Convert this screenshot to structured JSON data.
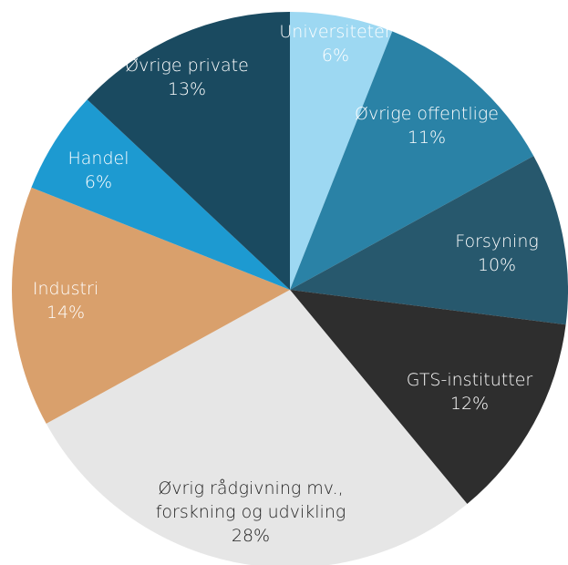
{
  "chart_data": {
    "type": "pie",
    "categories": [
      "Universiteter",
      "Øvrige offentlige",
      "Forsyning",
      "GTS-institutter",
      "Øvrig rådgivning mv., forskning og udvikling",
      "Industri",
      "Handel",
      "Øvrige private"
    ],
    "values": [
      6,
      11,
      10,
      12,
      28,
      14,
      6,
      13
    ],
    "value_labels": [
      "6%",
      "11%",
      "10%",
      "12%",
      "28%",
      "14%",
      "6%",
      "13%"
    ],
    "colors": [
      "#9dd8f2",
      "#2a82a6",
      "#27586d",
      "#2e2e2e",
      "#e6e6e6",
      "#d9a06c",
      "#1d9ad1",
      "#1a4a60"
    ]
  }
}
